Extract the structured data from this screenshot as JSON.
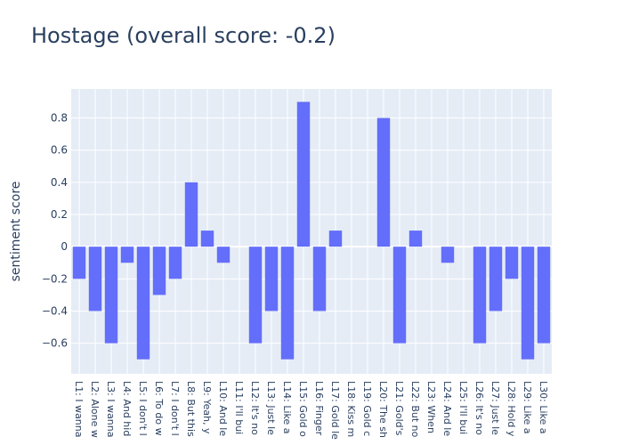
{
  "title": "Hostage (overall score: -0.2)",
  "chart_data": {
    "type": "bar",
    "title": "Hostage (overall score: -0.2)",
    "xlabel": "",
    "ylabel": "sentiment score",
    "ylim": [
      -0.79,
      0.98
    ],
    "yticks": [
      -0.6,
      -0.4,
      -0.2,
      0,
      0.2,
      0.4,
      0.6,
      0.8
    ],
    "ytick_labels": [
      "−0.6",
      "−0.4",
      "−0.2",
      "0",
      "0.2",
      "0.4",
      "0.6",
      "0.8"
    ],
    "grid": true,
    "bar_color": "#636efa",
    "plot_bg": "#e5ecf6",
    "categories": [
      "L1: I wanna",
      "L2: Alone w",
      "L3: I wanna",
      "L4: And hid",
      "L5: I don't l",
      "L6: To do w",
      "L7: I don't l",
      "L8: But this",
      "L9: Yeah, y",
      "L10: And le",
      "L11: I'll bui",
      "L12: It's no",
      "L13: Just le",
      "L14: Like a",
      "L15: Gold o",
      "L16: Finger",
      "L17: Gold le",
      "L18: Kiss m",
      "L19: Gold c",
      "L20: The sh",
      "L21: Gold's",
      "L22: But no",
      "L23: When",
      "L24: And le",
      "L25: I'll bui",
      "L26: It's no",
      "L27: Just le",
      "L28: Hold y",
      "L29: Like a",
      "L30: Like a"
    ],
    "values": [
      -0.2,
      -0.4,
      -0.6,
      -0.1,
      -0.7,
      -0.3,
      -0.2,
      0.4,
      0.1,
      -0.1,
      0,
      -0.6,
      -0.4,
      -0.7,
      0.9,
      -0.4,
      0.1,
      0,
      0,
      0.8,
      -0.6,
      0.1,
      0,
      -0.1,
      0,
      -0.6,
      -0.4,
      -0.2,
      -0.7,
      -0.6
    ]
  }
}
